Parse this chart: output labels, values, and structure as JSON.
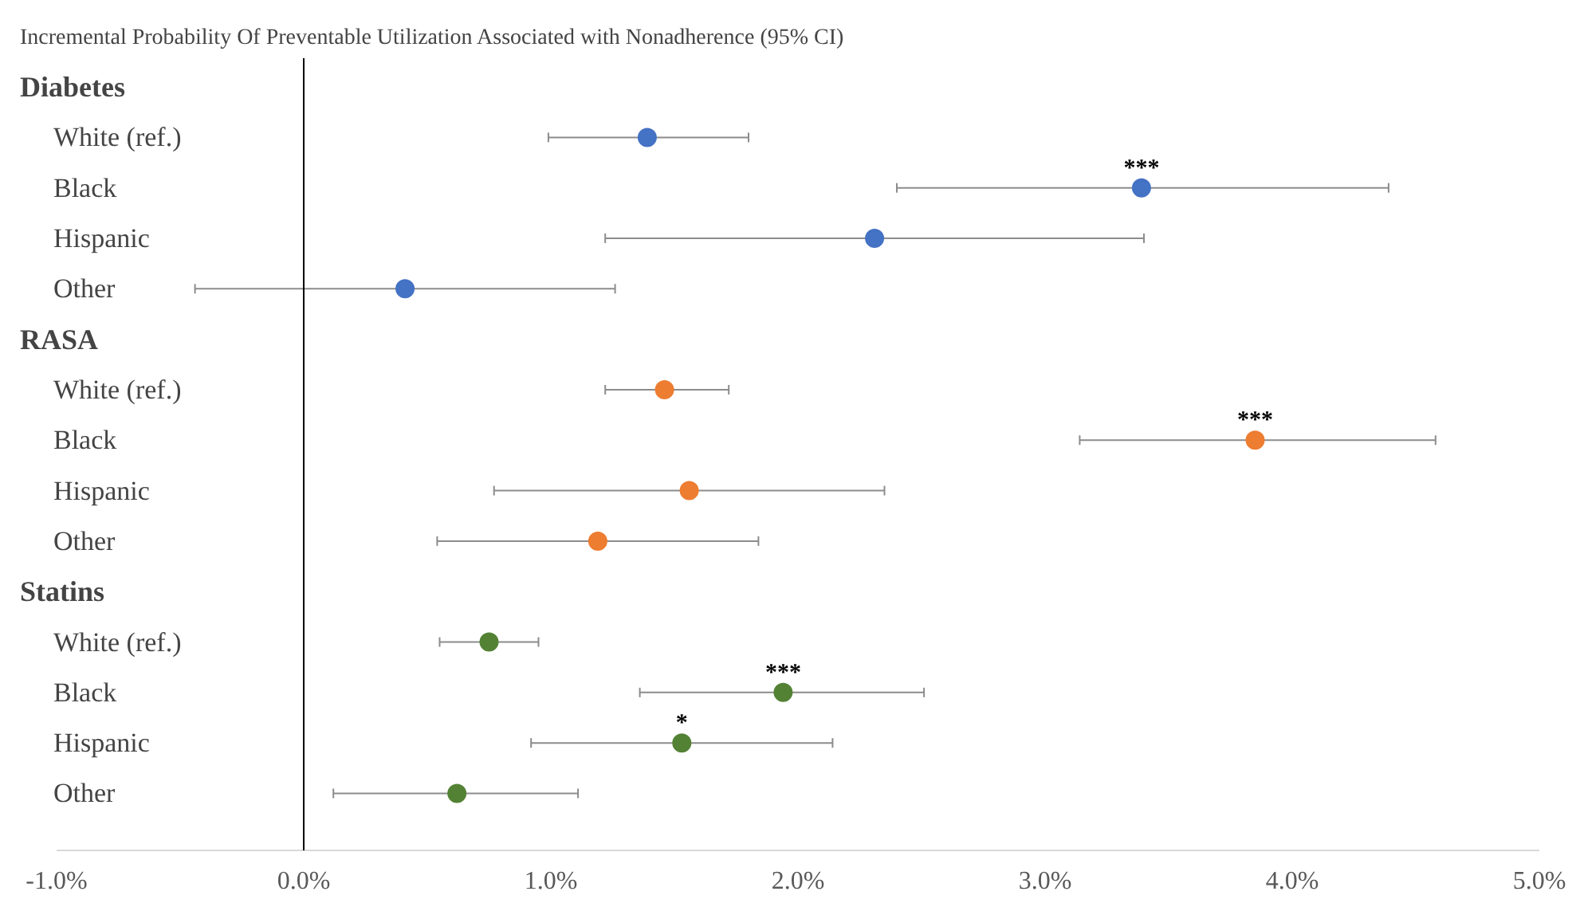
{
  "chart_data": {
    "type": "scatter",
    "orientation": "horizontal",
    "title": "Incremental Probability Of Preventable Utilization Associated with Nonadherence (95% CI)",
    "categories": [
      "Diabetes",
      "White (ref.)",
      "Black",
      "Hispanic",
      "Other",
      "RASA",
      "White (ref.)",
      "Black",
      "Hispanic",
      "Other",
      "Statins",
      "White (ref.)",
      "Black",
      "Hispanic",
      "Other"
    ],
    "series": [
      {
        "color": "#4472c4",
        "values": [
          null,
          1.39,
          3.39,
          2.31,
          0.41,
          null,
          null,
          null,
          null,
          null,
          null,
          null,
          null,
          null,
          null
        ],
        "errors": [
          null,
          [
            0.99,
            1.8
          ],
          [
            2.4,
            4.39
          ],
          [
            1.22,
            3.4
          ],
          [
            -0.44,
            1.26
          ],
          null,
          null,
          null,
          null,
          null,
          null,
          null,
          null,
          null,
          null
        ],
        "value_labels": [
          null,
          null,
          "***",
          null,
          null,
          null,
          null,
          null,
          null,
          null,
          null,
          null,
          null,
          null,
          null
        ]
      },
      {
        "color": "#ed7d31",
        "values": [
          null,
          null,
          null,
          null,
          null,
          null,
          1.46,
          3.85,
          1.56,
          1.19,
          null,
          null,
          null,
          null,
          null
        ],
        "errors": [
          null,
          null,
          null,
          null,
          null,
          null,
          [
            1.22,
            1.72
          ],
          [
            3.14,
            4.58
          ],
          [
            0.77,
            2.35
          ],
          [
            0.54,
            1.84
          ],
          null,
          null,
          null,
          null,
          null
        ],
        "value_labels": [
          null,
          null,
          null,
          null,
          null,
          null,
          null,
          "***",
          null,
          null,
          null,
          null,
          null,
          null,
          null
        ]
      },
      {
        "color": "#548235",
        "values": [
          null,
          null,
          null,
          null,
          null,
          null,
          null,
          null,
          null,
          null,
          null,
          0.75,
          1.94,
          1.53,
          0.62
        ],
        "errors": [
          null,
          null,
          null,
          null,
          null,
          null,
          null,
          null,
          null,
          null,
          null,
          [
            0.55,
            0.95
          ],
          [
            1.36,
            2.51
          ],
          [
            0.92,
            2.14
          ],
          [
            0.12,
            1.11
          ]
        ],
        "value_labels": [
          null,
          null,
          null,
          null,
          null,
          null,
          null,
          null,
          null,
          null,
          null,
          null,
          "***",
          "*",
          null
        ]
      }
    ],
    "xlim": [
      -1,
      5
    ],
    "xticks": [
      {
        "value": -1,
        "label": "-1.0%"
      },
      {
        "value": 0,
        "label": "0.0%"
      },
      {
        "value": 1,
        "label": "1.0%"
      },
      {
        "value": 2,
        "label": "2.0%"
      },
      {
        "value": 3,
        "label": "3.0%"
      },
      {
        "value": 4,
        "label": "4.0%"
      },
      {
        "value": 5,
        "label": "5.0%"
      }
    ],
    "ref_lines": [
      {
        "axis": "x",
        "value": 0,
        "color": "#000000"
      }
    ],
    "grid": false,
    "marker": "circle"
  }
}
